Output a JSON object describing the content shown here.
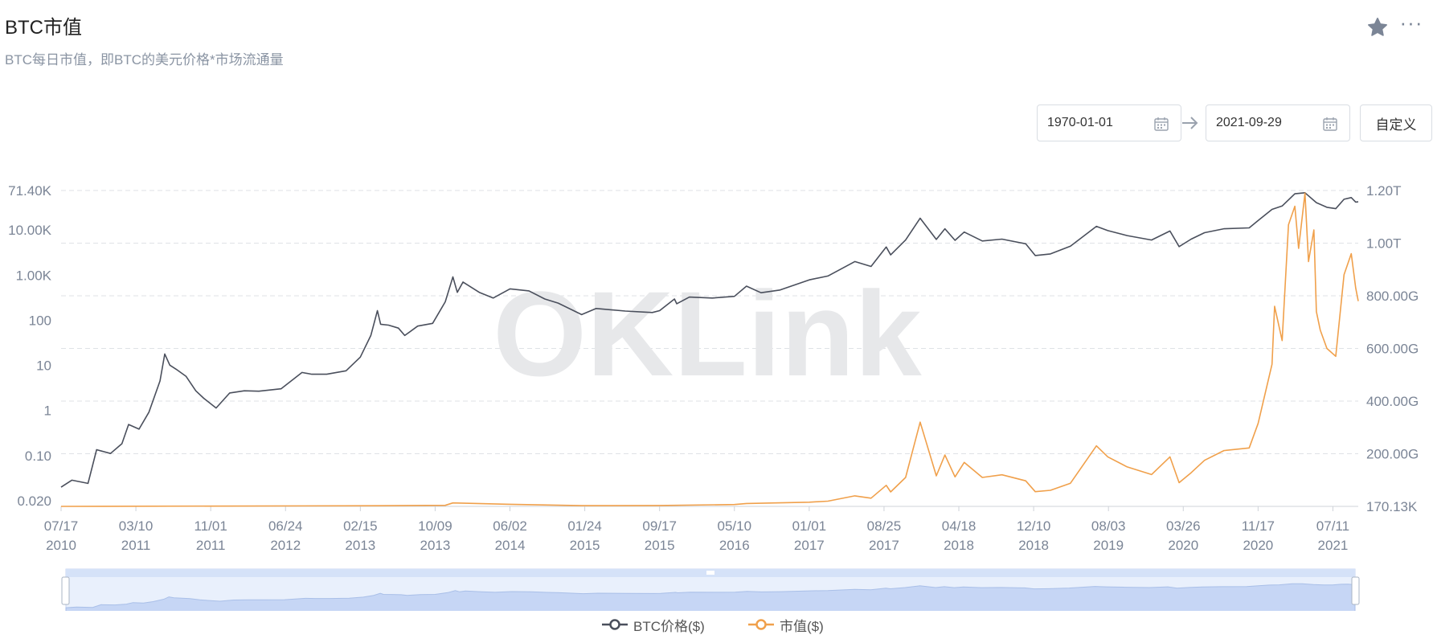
{
  "header": {
    "title": "BTC市值",
    "subtitle": "BTC每日市值，即BTC的美元价格*市场流通量"
  },
  "toolbar": {
    "star_icon": "star-icon",
    "more_icon": "more-icon",
    "more_glyph": "···"
  },
  "date_range": {
    "start": "1970-01-01",
    "end": "2021-09-29",
    "custom_label": "自定义",
    "calendar_icon": "calendar-icon",
    "arrow_icon": "arrow-right-icon"
  },
  "watermark": "OKLink",
  "legend": [
    {
      "label": "BTC价格($)",
      "color": "#4a4f5c"
    },
    {
      "label": "市值($)",
      "color": "#f0a04b"
    }
  ],
  "chart_data": {
    "type": "line",
    "x_ticks": [
      {
        "date": "2010-07-17",
        "label": [
          "07/17",
          "2010"
        ]
      },
      {
        "date": "2011-03-10",
        "label": [
          "03/10",
          "2011"
        ]
      },
      {
        "date": "2011-11-01",
        "label": [
          "11/01",
          "2011"
        ]
      },
      {
        "date": "2012-06-24",
        "label": [
          "06/24",
          "2012"
        ]
      },
      {
        "date": "2013-02-15",
        "label": [
          "02/15",
          "2013"
        ]
      },
      {
        "date": "2013-10-09",
        "label": [
          "10/09",
          "2013"
        ]
      },
      {
        "date": "2014-06-02",
        "label": [
          "06/02",
          "2014"
        ]
      },
      {
        "date": "2015-01-24",
        "label": [
          "01/24",
          "2015"
        ]
      },
      {
        "date": "2015-09-17",
        "label": [
          "09/17",
          "2015"
        ]
      },
      {
        "date": "2016-05-10",
        "label": [
          "05/10",
          "2016"
        ]
      },
      {
        "date": "2017-01-01",
        "label": [
          "01/01",
          "2017"
        ]
      },
      {
        "date": "2017-08-25",
        "label": [
          "08/25",
          "2017"
        ]
      },
      {
        "date": "2018-04-18",
        "label": [
          "04/18",
          "2018"
        ]
      },
      {
        "date": "2018-12-10",
        "label": [
          "12/10",
          "2018"
        ]
      },
      {
        "date": "2019-08-03",
        "label": [
          "08/03",
          "2019"
        ]
      },
      {
        "date": "2020-03-26",
        "label": [
          "03/26",
          "2020"
        ]
      },
      {
        "date": "2020-11-17",
        "label": [
          "11/17",
          "2020"
        ]
      },
      {
        "date": "2021-07-11",
        "label": [
          "07/11",
          "2021"
        ]
      }
    ],
    "x_range": [
      "2010-07-17",
      "2021-09-29"
    ],
    "left_axis": {
      "scale": "log",
      "range": [
        0.02,
        71400
      ],
      "ticks": [
        {
          "v": 71400,
          "label": "71.40K"
        },
        {
          "v": 10000,
          "label": "10.00K"
        },
        {
          "v": 1000,
          "label": "1.00K"
        },
        {
          "v": 100,
          "label": "100"
        },
        {
          "v": 10,
          "label": "10"
        },
        {
          "v": 1,
          "label": "1"
        },
        {
          "v": 0.1,
          "label": "0.10"
        },
        {
          "v": 0.02,
          "label": "0.020"
        }
      ]
    },
    "right_axis": {
      "scale": "linear",
      "range": [
        170130,
        1200000000000
      ],
      "ticks": [
        {
          "v": 1200000000000,
          "label": "1.20T"
        },
        {
          "v": 1000000000000,
          "label": "1.00T"
        },
        {
          "v": 800000000000,
          "label": "800.00G"
        },
        {
          "v": 600000000000,
          "label": "600.00G"
        },
        {
          "v": 400000000000,
          "label": "400.00G"
        },
        {
          "v": 200000000000,
          "label": "200.00G"
        },
        {
          "v": 170130,
          "label": "170.13K"
        }
      ]
    },
    "grid": true,
    "series": [
      {
        "name": "BTC价格($)",
        "axis": "left",
        "color": "#4a4f5c",
        "points": [
          [
            "2010-07-17",
            0.05
          ],
          [
            "2010-08-20",
            0.07
          ],
          [
            "2010-10-10",
            0.06
          ],
          [
            "2010-11-06",
            0.3
          ],
          [
            "2010-12-20",
            0.25
          ],
          [
            "2011-01-25",
            0.4
          ],
          [
            "2011-02-15",
            1.0
          ],
          [
            "2011-03-20",
            0.8
          ],
          [
            "2011-04-20",
            1.8
          ],
          [
            "2011-05-25",
            8.0
          ],
          [
            "2011-06-09",
            29.0
          ],
          [
            "2011-06-25",
            17.0
          ],
          [
            "2011-07-15",
            14.0
          ],
          [
            "2011-08-15",
            10.0
          ],
          [
            "2011-09-15",
            5.0
          ],
          [
            "2011-10-10",
            3.5
          ],
          [
            "2011-11-18",
            2.2
          ],
          [
            "2011-12-31",
            4.5
          ],
          [
            "2012-02-15",
            5.0
          ],
          [
            "2012-04-01",
            4.9
          ],
          [
            "2012-06-10",
            5.5
          ],
          [
            "2012-08-15",
            12.0
          ],
          [
            "2012-09-15",
            11.0
          ],
          [
            "2012-11-01",
            11.0
          ],
          [
            "2013-01-01",
            13.0
          ],
          [
            "2013-02-15",
            25.0
          ],
          [
            "2013-03-20",
            70.0
          ],
          [
            "2013-04-10",
            230.0
          ],
          [
            "2013-04-20",
            120.0
          ],
          [
            "2013-05-15",
            115.0
          ],
          [
            "2013-06-15",
            100.0
          ],
          [
            "2013-07-05",
            70.0
          ],
          [
            "2013-08-15",
            110.0
          ],
          [
            "2013-10-01",
            125.0
          ],
          [
            "2013-11-10",
            350.0
          ],
          [
            "2013-12-04",
            1150.0
          ],
          [
            "2013-12-18",
            550.0
          ],
          [
            "2014-01-05",
            900.0
          ],
          [
            "2014-02-25",
            550.0
          ],
          [
            "2014-04-10",
            420.0
          ],
          [
            "2014-06-02",
            650.0
          ],
          [
            "2014-08-01",
            590.0
          ],
          [
            "2014-09-20",
            400.0
          ],
          [
            "2014-11-01",
            330.0
          ],
          [
            "2015-01-14",
            190.0
          ],
          [
            "2015-03-01",
            255.0
          ],
          [
            "2015-06-01",
            225.0
          ],
          [
            "2015-08-25",
            210.0
          ],
          [
            "2015-09-17",
            230.0
          ],
          [
            "2015-11-03",
            400.0
          ],
          [
            "2015-11-10",
            320.0
          ],
          [
            "2015-12-20",
            440.0
          ],
          [
            "2016-03-01",
            420.0
          ],
          [
            "2016-05-10",
            455.0
          ],
          [
            "2016-06-17",
            740.0
          ],
          [
            "2016-08-02",
            540.0
          ],
          [
            "2016-10-01",
            615.0
          ],
          [
            "2017-01-01",
            1000.0
          ],
          [
            "2017-03-01",
            1200.0
          ],
          [
            "2017-05-25",
            2400.0
          ],
          [
            "2017-07-15",
            1900.0
          ],
          [
            "2017-09-01",
            4800.0
          ],
          [
            "2017-09-15",
            3300.0
          ],
          [
            "2017-11-01",
            6700.0
          ],
          [
            "2017-12-17",
            19000.0
          ],
          [
            "2018-02-06",
            6900.0
          ],
          [
            "2018-03-05",
            11500.0
          ],
          [
            "2018-04-06",
            6600.0
          ],
          [
            "2018-05-05",
            9800.0
          ],
          [
            "2018-07-01",
            6400.0
          ],
          [
            "2018-09-01",
            7000.0
          ],
          [
            "2018-11-15",
            5600.0
          ],
          [
            "2018-12-15",
            3200.0
          ],
          [
            "2019-02-01",
            3450.0
          ],
          [
            "2019-04-05",
            5000.0
          ],
          [
            "2019-06-26",
            12900.0
          ],
          [
            "2019-08-01",
            10500.0
          ],
          [
            "2019-10-01",
            8300.0
          ],
          [
            "2019-12-17",
            6700.0
          ],
          [
            "2020-02-13",
            10300.0
          ],
          [
            "2020-03-13",
            4900.0
          ],
          [
            "2020-04-20",
            7000.0
          ],
          [
            "2020-06-01",
            9500.0
          ],
          [
            "2020-08-01",
            11500.0
          ],
          [
            "2020-10-20",
            12000.0
          ],
          [
            "2020-11-17",
            17000.0
          ],
          [
            "2020-12-31",
            29000.0
          ],
          [
            "2021-02-01",
            34000.0
          ],
          [
            "2021-03-13",
            61000.0
          ],
          [
            "2021-04-14",
            64000.0
          ],
          [
            "2021-05-20",
            40000.0
          ],
          [
            "2021-06-22",
            32000.0
          ],
          [
            "2021-07-20",
            30000.0
          ],
          [
            "2021-08-15",
            47000.0
          ],
          [
            "2021-09-07",
            51000.0
          ],
          [
            "2021-09-21",
            41000.0
          ],
          [
            "2021-09-29",
            41500.0
          ]
        ]
      },
      {
        "name": "市值($)",
        "axis": "right",
        "color": "#f0a04b",
        "points": [
          [
            "2010-07-17",
            170130
          ],
          [
            "2013-04-10",
            2500000000
          ],
          [
            "2013-11-10",
            4000000000
          ],
          [
            "2013-12-04",
            13000000000
          ],
          [
            "2014-06-02",
            8000000000
          ],
          [
            "2015-01-14",
            2600000000
          ],
          [
            "2015-09-17",
            3500000000
          ],
          [
            "2016-05-10",
            7000000000
          ],
          [
            "2016-06-17",
            11000000000
          ],
          [
            "2017-01-01",
            16000000000
          ],
          [
            "2017-03-01",
            20000000000
          ],
          [
            "2017-05-25",
            40000000000
          ],
          [
            "2017-07-15",
            31000000000
          ],
          [
            "2017-09-01",
            80000000000
          ],
          [
            "2017-09-15",
            55000000000
          ],
          [
            "2017-11-01",
            110000000000
          ],
          [
            "2017-12-17",
            320000000000
          ],
          [
            "2018-02-06",
            116000000000
          ],
          [
            "2018-03-05",
            195000000000
          ],
          [
            "2018-04-06",
            112000000000
          ],
          [
            "2018-05-05",
            167000000000
          ],
          [
            "2018-07-01",
            110000000000
          ],
          [
            "2018-09-01",
            120000000000
          ],
          [
            "2018-11-15",
            97000000000
          ],
          [
            "2018-12-15",
            56000000000
          ],
          [
            "2019-02-01",
            61000000000
          ],
          [
            "2019-04-05",
            88000000000
          ],
          [
            "2019-06-26",
            230000000000
          ],
          [
            "2019-08-01",
            188000000000
          ],
          [
            "2019-10-01",
            150000000000
          ],
          [
            "2019-12-17",
            121000000000
          ],
          [
            "2020-02-13",
            188000000000
          ],
          [
            "2020-03-13",
            90000000000
          ],
          [
            "2020-04-20",
            128000000000
          ],
          [
            "2020-06-01",
            175000000000
          ],
          [
            "2020-08-01",
            212000000000
          ],
          [
            "2020-10-20",
            222000000000
          ],
          [
            "2020-11-17",
            315000000000
          ],
          [
            "2020-12-31",
            540000000000
          ],
          [
            "2021-01-08",
            760000000000
          ],
          [
            "2021-02-01",
            630000000000
          ],
          [
            "2021-02-21",
            1070000000000
          ],
          [
            "2021-03-13",
            1140000000000
          ],
          [
            "2021-03-25",
            980000000000
          ],
          [
            "2021-04-14",
            1190000000000
          ],
          [
            "2021-04-25",
            930000000000
          ],
          [
            "2021-05-12",
            1050000000000
          ],
          [
            "2021-05-20",
            740000000000
          ],
          [
            "2021-06-01",
            670000000000
          ],
          [
            "2021-06-22",
            600000000000
          ],
          [
            "2021-07-20",
            570000000000
          ],
          [
            "2021-08-15",
            880000000000
          ],
          [
            "2021-09-07",
            960000000000
          ],
          [
            "2021-09-21",
            830000000000
          ],
          [
            "2021-09-29",
            780000000000
          ]
        ]
      }
    ],
    "legend_position": "bottom-center"
  }
}
